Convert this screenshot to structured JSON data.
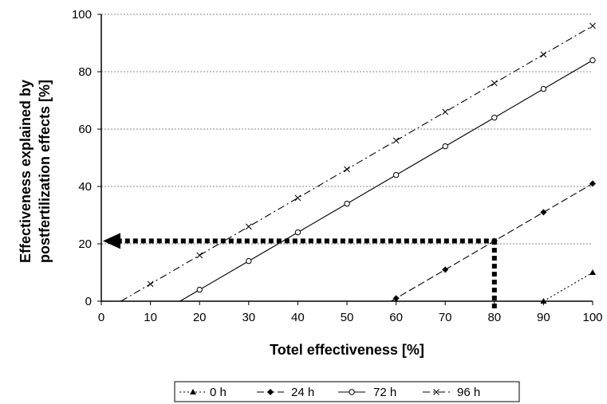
{
  "chart_data": {
    "type": "line",
    "xlabel": "Totel effectiveness [%]",
    "ylabel_lines": [
      "Effectiveness explained by",
      "postfertilization effects [%]"
    ],
    "xlim": [
      0,
      100
    ],
    "ylim": [
      0,
      100
    ],
    "x_ticks": [
      0,
      10,
      20,
      30,
      40,
      50,
      60,
      70,
      80,
      90,
      100
    ],
    "y_ticks": [
      0,
      20,
      40,
      60,
      80,
      100
    ],
    "grid": "horizontal dotted",
    "legend_position": "bottom",
    "series": [
      {
        "name": "0 h",
        "line": "dotted",
        "marker": "triangle",
        "x": [
          90,
          100
        ],
        "y": [
          0,
          10
        ]
      },
      {
        "name": "24 h",
        "line": "dashed",
        "marker": "diamond",
        "x": [
          60,
          70,
          80,
          90,
          100
        ],
        "y": [
          1,
          11,
          21,
          31,
          41
        ]
      },
      {
        "name": "72 h",
        "line": "solid",
        "marker": "circle",
        "x": [
          20,
          30,
          40,
          50,
          60,
          70,
          80,
          90,
          100
        ],
        "y": [
          4,
          14,
          24,
          34,
          44,
          54,
          64,
          74,
          84
        ]
      },
      {
        "name": "96 h",
        "line": "dashdot",
        "marker": "x",
        "x": [
          10,
          20,
          30,
          40,
          50,
          60,
          70,
          80,
          90,
          100
        ],
        "y": [
          6,
          16,
          26,
          36,
          46,
          56,
          66,
          76,
          86,
          96
        ]
      }
    ],
    "annotation": {
      "type": "arrow-path",
      "start": {
        "x": 80,
        "y": 0
      },
      "corner": {
        "x": 80,
        "y": 21
      },
      "end": {
        "x": 0,
        "y": 21
      }
    }
  }
}
